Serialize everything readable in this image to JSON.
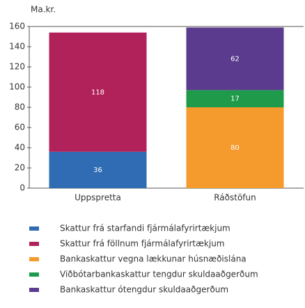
{
  "chart_data": {
    "type": "stacked-bar",
    "y_label": "Ma.kr.",
    "categories": [
      "Uppspretta",
      "Ráðstöfun"
    ],
    "series": [
      {
        "name": "Skattur frá starfandi fjármálafyrirtækjum",
        "color": "#2f6cb3",
        "values": [
          36,
          null
        ]
      },
      {
        "name": "Skattur frá föllnum fjármálafyrirtækjum",
        "color": "#b1225a",
        "values": [
          118,
          null
        ]
      },
      {
        "name": "Bankaskattur vegna lækkunar húsnæðislána",
        "color": "#f59a2c",
        "values": [
          null,
          80
        ]
      },
      {
        "name": "Viðbótarbankaskattur tengdur skuldaaðgerðum",
        "color": "#1f9a4b",
        "values": [
          null,
          17
        ]
      },
      {
        "name": "Bankaskattur ótengdur skuldaaðgerðum",
        "color": "#5b3b8d",
        "values": [
          null,
          62
        ]
      }
    ],
    "ylim": [
      0,
      160
    ],
    "yticks": [
      0,
      20,
      40,
      60,
      80,
      100,
      120,
      140,
      160
    ]
  }
}
